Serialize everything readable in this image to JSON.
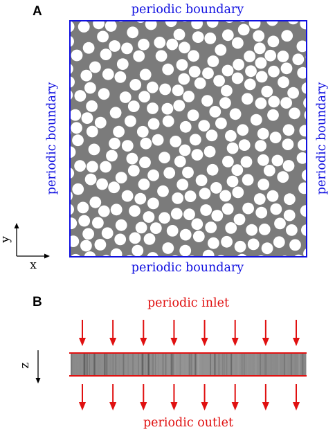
{
  "panel_a": {
    "label": "A",
    "top_boundary": "periodic boundary",
    "bottom_boundary": "periodic boundary",
    "left_boundary": "periodic boundary",
    "right_boundary": "periodic boundary",
    "axis_y": "y",
    "axis_x": "x",
    "domain_color": "#7b7b7b",
    "fiber_color": "#ffffff",
    "frame_color": "#1010e0"
  },
  "panel_b": {
    "label": "B",
    "inlet_label": "periodic inlet",
    "outlet_label": "periodic outlet",
    "axis_z": "z",
    "arrow_color": "#e01010",
    "arrow_count": 8
  }
}
